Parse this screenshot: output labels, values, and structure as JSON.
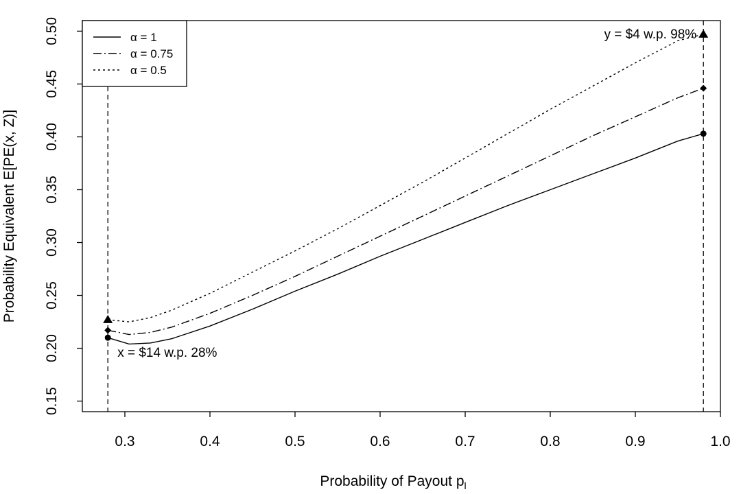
{
  "chart_data": {
    "type": "line",
    "xlabel": "Probability of Payout p",
    "xlabel_sub": "l",
    "ylabel": "Probability Equivalent E[PE(x, Z)]",
    "xlim": [
      0.25,
      1.0
    ],
    "ylim": [
      0.14,
      0.51
    ],
    "x_ticks": [
      0.3,
      0.4,
      0.5,
      0.6,
      0.7,
      0.8,
      0.9,
      1.0
    ],
    "x_tick_labels": [
      "0.3",
      "0.4",
      "0.5",
      "0.6",
      "0.7",
      "0.8",
      "0.9",
      "1.0"
    ],
    "y_ticks": [
      0.15,
      0.2,
      0.25,
      0.3,
      0.35,
      0.4,
      0.45,
      0.5
    ],
    "y_tick_labels": [
      "0.15",
      "0.20",
      "0.25",
      "0.30",
      "0.35",
      "0.40",
      "0.45",
      "0.50"
    ],
    "grid": false,
    "legend_position": "top-left",
    "x": [
      0.28,
      0.305,
      0.33,
      0.355,
      0.4,
      0.45,
      0.5,
      0.55,
      0.6,
      0.65,
      0.7,
      0.75,
      0.8,
      0.85,
      0.9,
      0.95,
      0.98
    ],
    "series": [
      {
        "name": "α = 1",
        "dash": "solid",
        "marker": "circle",
        "values": [
          0.21,
          0.204,
          0.205,
          0.209,
          0.221,
          0.237,
          0.254,
          0.27,
          0.287,
          0.303,
          0.319,
          0.335,
          0.35,
          0.365,
          0.38,
          0.396,
          0.403
        ]
      },
      {
        "name": "α = 0.75",
        "dash": "dashdot",
        "marker": "diamond",
        "values": [
          0.217,
          0.213,
          0.215,
          0.22,
          0.233,
          0.25,
          0.268,
          0.287,
          0.306,
          0.325,
          0.344,
          0.363,
          0.382,
          0.401,
          0.419,
          0.437,
          0.446
        ]
      },
      {
        "name": "α = 0.5",
        "dash": "dotted",
        "marker": "triangle",
        "values": [
          0.227,
          0.225,
          0.229,
          0.236,
          0.252,
          0.272,
          0.292,
          0.313,
          0.335,
          0.357,
          0.38,
          0.403,
          0.426,
          0.448,
          0.47,
          0.491,
          0.497
        ]
      }
    ],
    "vlines": [
      0.28,
      0.98
    ],
    "annotations": {
      "left": {
        "text": "x = $14 w.p. 28%",
        "x": 0.28,
        "y": 0.21
      },
      "right": {
        "text": "y = $4 w.p. 98%",
        "x": 0.98,
        "y": 0.497
      }
    }
  }
}
